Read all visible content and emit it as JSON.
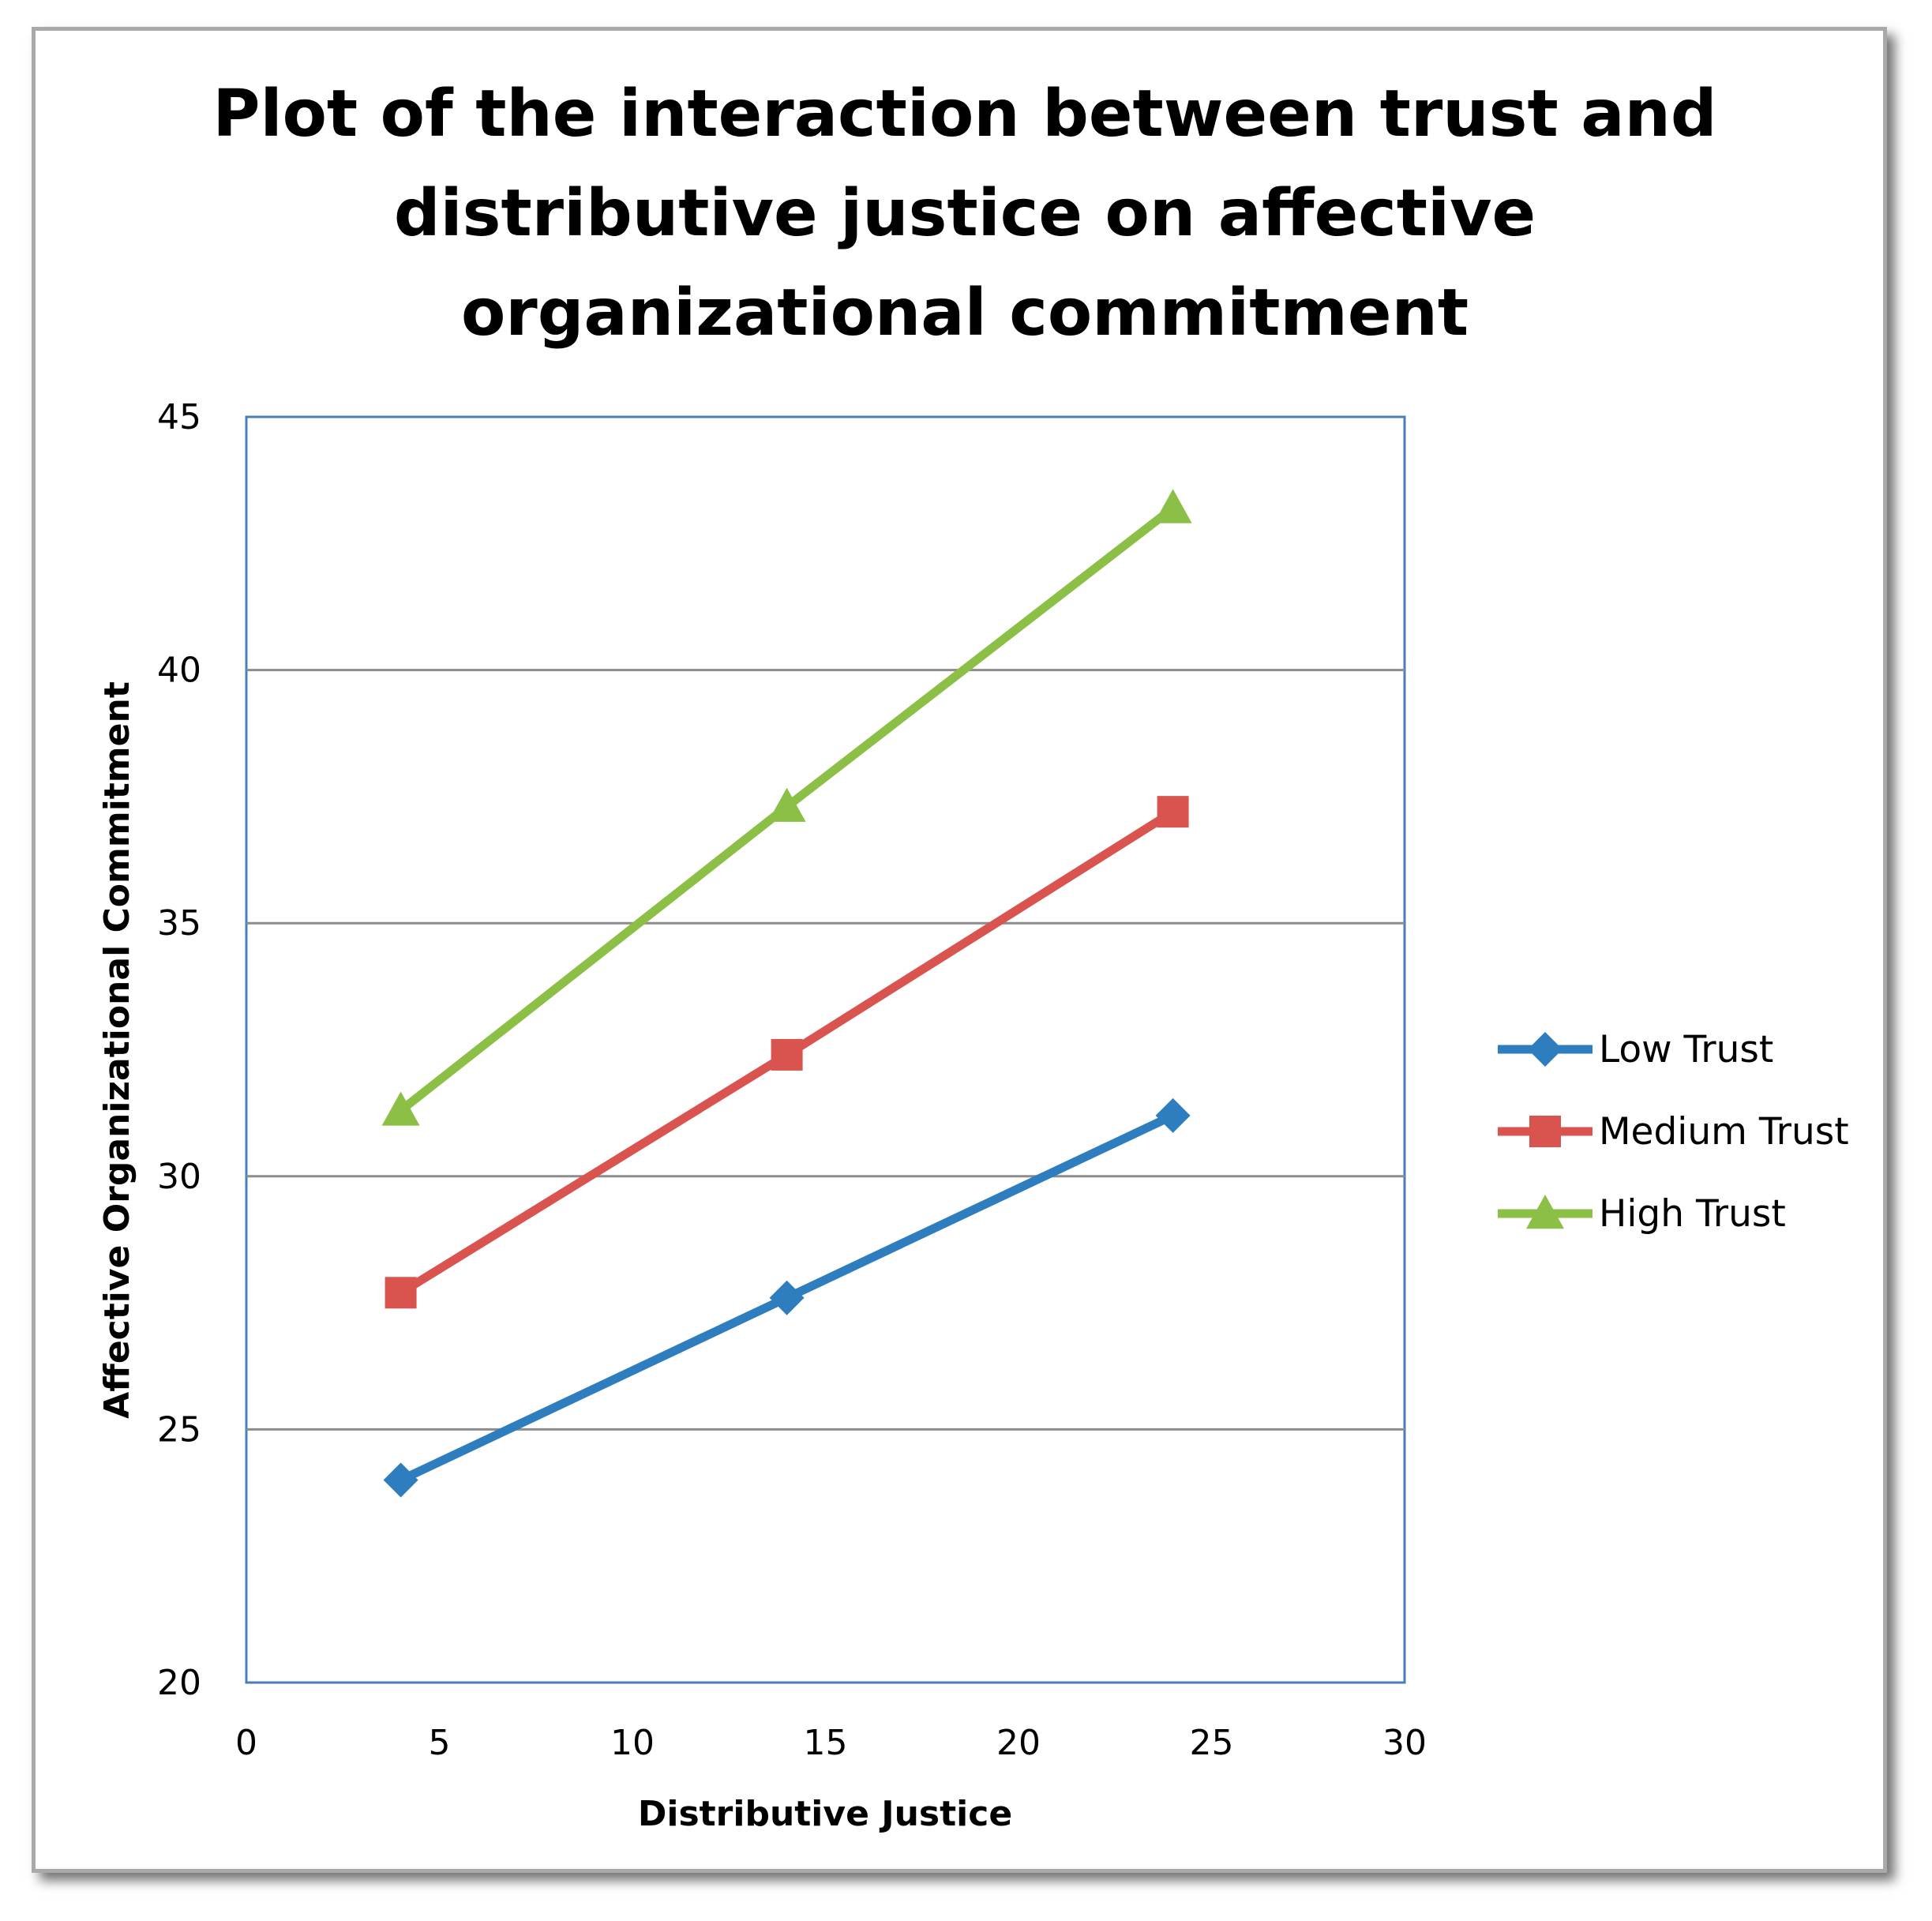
{
  "chart_data": {
    "type": "line",
    "title_lines": [
      "Plot of the interaction between trust and",
      "distributive justice on affective",
      "organizational commitment"
    ],
    "xlabel": "Distributive Justice",
    "ylabel": "Affective Organizational Commitment",
    "xlim": [
      0,
      30
    ],
    "ylim": [
      20,
      45
    ],
    "xticks": [
      "0",
      "5",
      "10",
      "15",
      "20",
      "25",
      "30"
    ],
    "yticks": [
      "20",
      "25",
      "30",
      "35",
      "40",
      "45"
    ],
    "grid": "horizontal",
    "legend_position": "right",
    "x": [
      4,
      14,
      24
    ],
    "series": [
      {
        "name": "Low Trust",
        "values": [
          24.0,
          27.6,
          31.2
        ],
        "color": "#2e7ebf",
        "marker": "diamond"
      },
      {
        "name": "Medium Trust",
        "values": [
          27.7,
          32.4,
          37.2
        ],
        "color": "#d9534f",
        "marker": "square"
      },
      {
        "name": "High Trust",
        "values": [
          31.3,
          37.3,
          43.2
        ],
        "color": "#8bbf45",
        "marker": "triangle"
      }
    ]
  }
}
